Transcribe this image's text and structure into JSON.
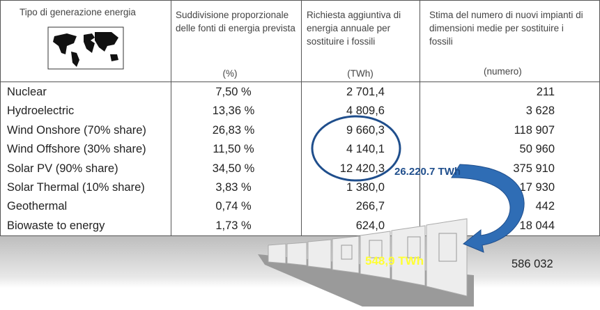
{
  "header": {
    "columns": [
      {
        "title": "Tipo di generazione  energia"
      },
      {
        "title": "Suddivisione proporzionale delle fonti di energia prevista",
        "unit": "(%)"
      },
      {
        "title": "Richiesta aggiuntiva di energia annuale per sostituire i fossili",
        "unit": "(TWh)"
      },
      {
        "title": "Stima del numero di nuovi impianti di dimensioni medie per sostituire i fossili",
        "unit": "(numero)"
      }
    ]
  },
  "table": {
    "rows": [
      [
        "Nuclear",
        "7,50 %",
        "2 701,4",
        "211"
      ],
      [
        "Hydroelectric",
        "13,36 %",
        "4 809,6",
        "3 628"
      ],
      [
        "Wind Onshore (70% share)",
        "26,83 %",
        "9 660,3",
        "118 907"
      ],
      [
        "Wind Offshore (30% share)",
        "11,50 %",
        "4 140,1",
        "50 960"
      ],
      [
        "Solar PV (90% share)",
        "34,50 %",
        "12 420,3",
        "375 910"
      ],
      [
        "Solar Thermal (10% share)",
        "3,83 %",
        "1 380,0",
        "17 930"
      ],
      [
        "Geothermal",
        "0,74 %",
        "266,7",
        "442"
      ],
      [
        "Biowaste to energy",
        "1,73 %",
        "624,0",
        "18 044"
      ]
    ]
  },
  "annotations": {
    "circled_total": "26.220.7 TWh",
    "storage_energy": "548,9 TWh",
    "total_plants": "586 032"
  }
}
